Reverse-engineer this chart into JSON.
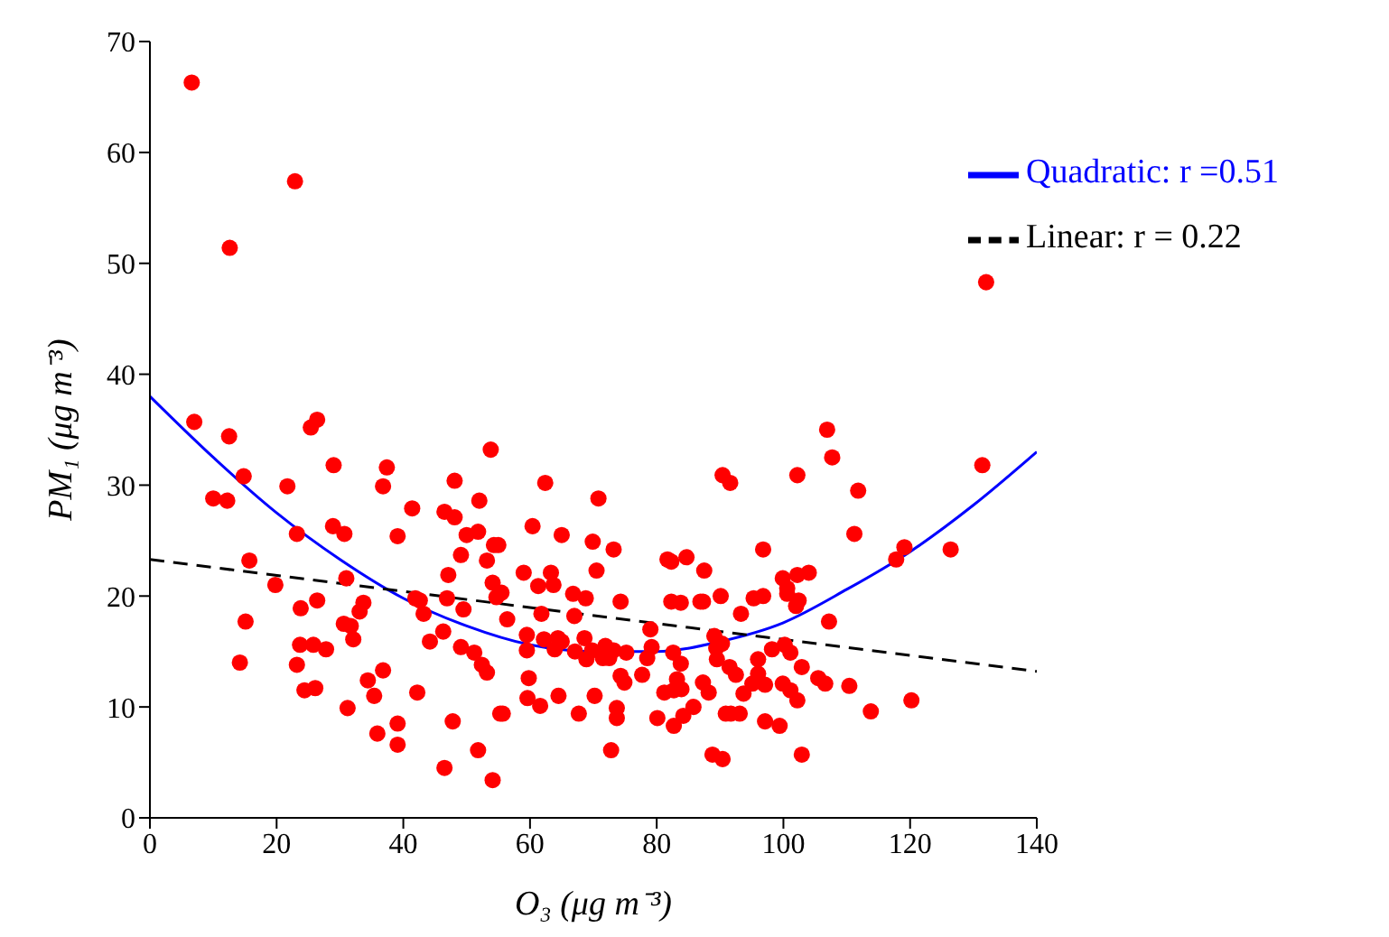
{
  "chart_data": {
    "type": "scatter",
    "xlabel": "O₃ (μg m⁻³)",
    "ylabel": "PM₁ (μg m⁻³)",
    "xlim": [
      0,
      140
    ],
    "xticks": [
      0,
      20,
      40,
      60,
      80,
      100,
      120,
      140
    ],
    "ylim": [
      0,
      70
    ],
    "yticks": [
      0,
      10,
      20,
      30,
      40,
      50,
      60,
      70
    ],
    "grid": false,
    "legend": "top right",
    "series": [
      {
        "color": "#ff0000",
        "marker": "circle",
        "x": [
          6.6,
          22.9,
          12.6,
          132.0,
          7.0,
          12.5,
          14.8,
          10.0,
          12.2,
          25.4,
          26.4,
          29.0,
          21.7,
          23.2,
          28.9,
          30.7,
          37.4,
          36.8,
          41.4,
          39.1,
          46.5,
          48.1,
          48.1,
          15.7,
          19.8,
          47.1,
          31.0,
          46.9,
          41.9,
          42.6,
          43.2,
          33.7,
          33.1,
          23.8,
          26.4,
          15.1,
          30.6,
          31.7,
          32.1,
          46.3,
          44.2,
          23.7,
          25.8,
          27.8,
          14.2,
          23.2,
          34.4,
          35.4,
          36.8,
          24.4,
          26.1,
          31.2,
          42.2,
          47.8,
          35.9,
          39.1,
          39.1,
          46.5,
          53.8,
          62.4,
          52.0,
          70.8,
          50.0,
          51.8,
          60.4,
          65.0,
          69.9,
          73.2,
          54.3,
          55.0,
          49.1,
          53.2,
          59.0,
          63.3,
          63.7,
          61.3,
          70.5,
          54.1,
          55.5,
          54.7,
          66.8,
          68.8,
          74.3,
          49.5,
          61.8,
          67.0,
          56.4,
          59.5,
          59.5,
          62.2,
          64.4,
          65.0,
          63.9,
          67.1,
          68.6,
          68.9,
          69.8,
          71.9,
          73.2,
          71.5,
          72.5,
          75.2,
          74.3,
          74.9,
          49.1,
          51.2,
          52.4,
          53.2,
          59.8,
          59.6,
          61.6,
          64.5,
          70.2,
          67.7,
          73.7,
          73.7,
          55.3,
          55.7,
          51.8,
          54.1,
          72.8,
          79.0,
          79.2,
          78.5,
          77.7,
          80.1,
          81.2,
          82.7,
          81.7,
          82.3,
          84.7,
          87.5,
          82.3,
          83.8,
          86.9,
          87.3,
          90.1,
          90.4,
          91.6,
          93.3,
          82.6,
          83.8,
          83.2,
          83.9,
          82.7,
          85.8,
          84.2,
          87.3,
          88.2,
          89.1,
          89.4,
          89.5,
          90.3,
          91.5,
          92.5,
          90.9,
          91.7,
          93.1,
          93.7,
          88.8,
          90.4,
          106.9,
          107.7,
          102.2,
          111.8,
          131.4,
          111.2,
          119.1,
          117.8,
          126.4,
          96.8,
          99.9,
          102.2,
          104.0,
          100.6,
          100.6,
          102.4,
          102.0,
          95.3,
          96.8,
          107.2,
          98.2,
          100.2,
          101.1,
          96.0,
          102.9,
          96.0,
          95.1,
          97.1,
          99.9,
          101.1,
          102.2,
          105.5,
          106.6,
          110.4,
          120.2,
          113.8,
          97.1,
          99.4,
          102.9
        ],
        "values": [
          66.3,
          57.4,
          51.4,
          48.3,
          35.7,
          34.4,
          30.8,
          28.8,
          28.6,
          35.2,
          35.9,
          31.8,
          29.9,
          25.6,
          26.3,
          25.6,
          31.6,
          29.9,
          27.9,
          25.4,
          27.6,
          27.1,
          30.4,
          23.2,
          21.0,
          21.9,
          21.6,
          19.8,
          19.8,
          19.6,
          18.4,
          19.4,
          18.6,
          18.9,
          19.6,
          17.7,
          17.5,
          17.3,
          16.1,
          16.8,
          15.9,
          15.6,
          15.6,
          15.2,
          14.0,
          13.8,
          12.4,
          11.0,
          13.3,
          11.5,
          11.7,
          9.9,
          11.3,
          8.7,
          7.6,
          8.5,
          6.6,
          4.5,
          33.2,
          30.2,
          28.6,
          28.8,
          25.5,
          25.8,
          26.3,
          25.5,
          24.9,
          24.2,
          24.6,
          24.6,
          23.7,
          23.2,
          22.1,
          22.1,
          21.0,
          20.9,
          22.3,
          21.2,
          20.3,
          19.9,
          20.2,
          19.8,
          19.5,
          18.8,
          18.4,
          18.2,
          17.9,
          16.5,
          15.1,
          16.1,
          16.2,
          15.9,
          15.2,
          15.0,
          16.2,
          14.3,
          15.1,
          15.5,
          15.1,
          14.4,
          14.4,
          14.9,
          12.8,
          12.2,
          15.4,
          14.9,
          13.8,
          13.1,
          12.6,
          10.8,
          10.1,
          11.0,
          11.0,
          9.4,
          9.9,
          9.0,
          9.4,
          9.4,
          6.1,
          3.4,
          6.1,
          17.0,
          15.4,
          14.4,
          12.9,
          9.0,
          11.3,
          8.3,
          23.3,
          23.1,
          23.5,
          22.3,
          19.5,
          19.4,
          19.5,
          19.5,
          20.0,
          30.9,
          30.2,
          18.4,
          14.9,
          13.9,
          12.5,
          11.6,
          11.5,
          10.0,
          9.2,
          12.2,
          11.3,
          16.4,
          15.3,
          14.3,
          15.7,
          13.6,
          12.9,
          9.4,
          9.4,
          9.4,
          11.2,
          5.7,
          5.3,
          35.0,
          32.5,
          30.9,
          29.5,
          31.8,
          25.6,
          24.4,
          23.3,
          24.2,
          24.2,
          21.6,
          21.9,
          22.1,
          20.7,
          20.2,
          19.6,
          19.1,
          19.8,
          20.0,
          17.7,
          15.2,
          15.6,
          14.9,
          14.3,
          13.6,
          13.0,
          12.1,
          12.0,
          12.1,
          11.5,
          10.6,
          12.6,
          12.1,
          11.9,
          10.6,
          9.6,
          8.7,
          8.3,
          5.7
        ]
      },
      {
        "type": "line",
        "name": "Quadratic: r =0.51",
        "color": "#0000ff",
        "marker": "none",
        "line_style": "solid",
        "x": [
          0,
          10,
          20,
          30,
          40,
          50,
          60,
          70,
          80,
          90,
          100,
          110,
          120,
          130,
          140
        ],
        "values": [
          38,
          32.5,
          27.5,
          23.3,
          19.8,
          17.3,
          15.6,
          15,
          15,
          15.9,
          17.6,
          20.6,
          24,
          28.2,
          33
        ]
      },
      {
        "type": "line",
        "name": "Linear: r = 0.22",
        "color": "#000000",
        "marker": "none",
        "line_style": "dashed",
        "x": [
          0,
          140
        ],
        "values": [
          23.3,
          13.2
        ]
      }
    ]
  }
}
